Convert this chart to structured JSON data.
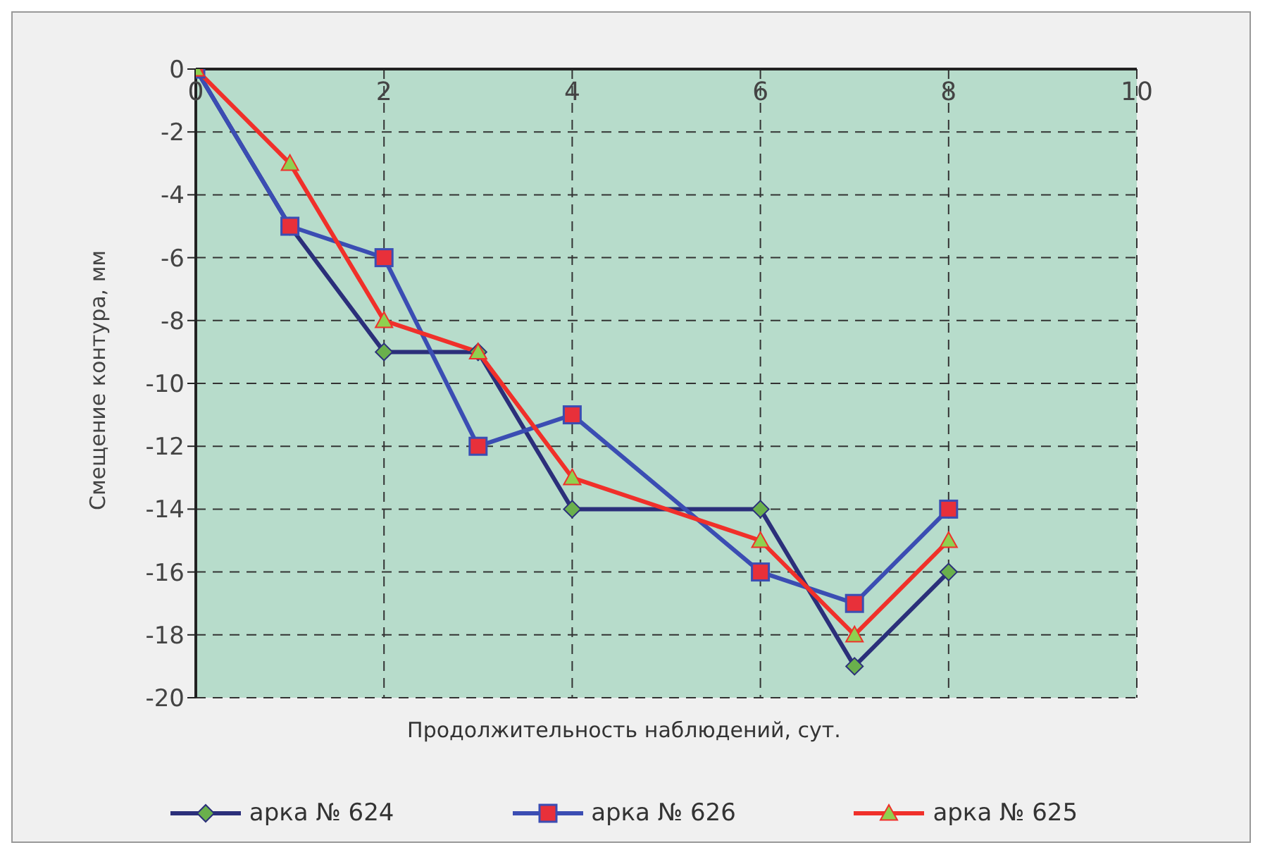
{
  "chart_data": {
    "type": "line",
    "xlabel": "Продолжительность наблюдений, сут.",
    "ylabel": "Смещение контура, мм",
    "x": [
      0,
      1,
      2,
      3,
      4,
      6,
      7,
      8
    ],
    "xlim": [
      0,
      10
    ],
    "xticks": [
      0,
      2,
      4,
      6,
      8,
      10
    ],
    "ylim": [
      -20,
      0
    ],
    "yticks": [
      -20,
      -18,
      -16,
      -14,
      -12,
      -10,
      -8,
      -6,
      -4,
      -2,
      0
    ],
    "grid": true,
    "legend": "bottom",
    "line_style": "solid",
    "series": [
      {
        "name": "арка № 624",
        "color": "#2b2f7a",
        "marker": "diamond",
        "colors": [
          "#6ab04c",
          "#6ab04c",
          "#6ab04c",
          "#6ab04c",
          "#6ab04c",
          "#6ab04c",
          "#6ab04c",
          "#6ab04c"
        ],
        "values": [
          0,
          -5,
          -9,
          -9,
          -14,
          -14,
          -19,
          -16
        ]
      },
      {
        "name": "арка № 626",
        "color": "#3b4db3",
        "marker": "square",
        "colors": [
          "#e8303a",
          "#e8303a",
          "#e8303a",
          "#e8303a",
          "#e8303a",
          "#e8303a",
          "#e8303a",
          "#e8303a"
        ],
        "values": [
          0,
          -5,
          -6,
          -12,
          -11,
          -16,
          -17,
          -14
        ]
      },
      {
        "name": "арка № 625",
        "color": "#f0302a",
        "marker": "triangle",
        "colors": [
          "#8fd14f",
          "#8fd14f",
          "#8fd14f",
          "#8fd14f",
          "#8fd14f",
          "#8fd14f",
          "#8fd14f",
          "#8fd14f"
        ],
        "values": [
          0,
          -3,
          -8,
          -9,
          -13,
          -15,
          -18,
          -15
        ]
      }
    ]
  }
}
